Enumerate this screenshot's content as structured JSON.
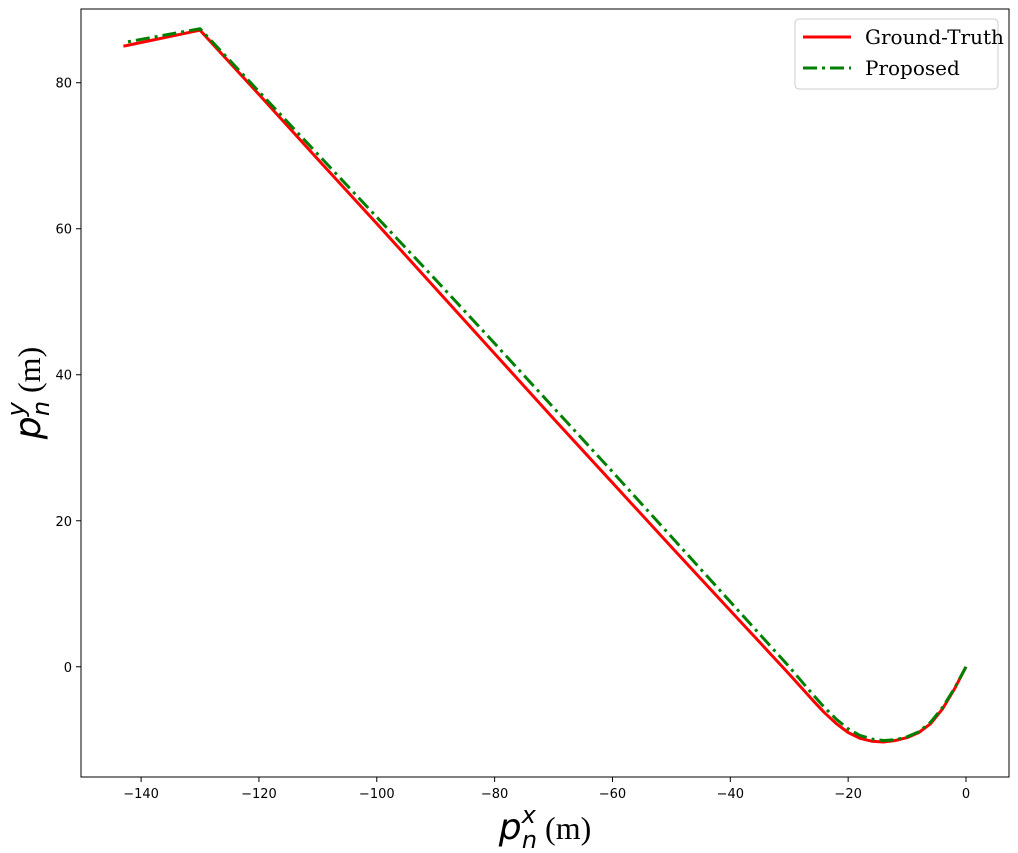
{
  "chart_data": {
    "type": "line",
    "xlabel": {
      "symbol": "p",
      "superscript": "x",
      "subscript": "n",
      "unit": "(m)"
    },
    "ylabel": {
      "symbol": "p",
      "superscript": "y",
      "subscript": "n",
      "unit": "(m)"
    },
    "xlim": [
      -150.2,
      7.3
    ],
    "ylim": [
      -15.1,
      90.1
    ],
    "xticks": [
      -140,
      -120,
      -100,
      -80,
      -60,
      -40,
      -20,
      0
    ],
    "yticks": [
      0,
      20,
      40,
      60,
      80
    ],
    "grid": false,
    "legend_position": "top-right",
    "series": [
      {
        "name": "Ground-Truth",
        "color": "#ff0000",
        "style": "solid",
        "x": [
          0,
          -2,
          -4,
          -6,
          -8,
          -10,
          -12,
          -14,
          -16,
          -18,
          -20,
          -22,
          -24,
          -26,
          -30,
          -40,
          -50,
          -60,
          -70,
          -80,
          -90,
          -100,
          -110,
          -120,
          -130,
          -143
        ],
        "y": [
          0,
          -3.1,
          -5.8,
          -7.8,
          -9.0,
          -9.7,
          -10.1,
          -10.3,
          -10.2,
          -9.8,
          -9.0,
          -7.8,
          -6.3,
          -4.6,
          -1.0,
          7.7,
          16.4,
          25.2,
          34.0,
          42.9,
          51.8,
          60.7,
          69.5,
          78.4,
          87.2,
          85.0
        ]
      },
      {
        "name": "Proposed",
        "color": "#008000",
        "style": "dashdot",
        "x": [
          0,
          -2,
          -4,
          -6,
          -8,
          -10,
          -12,
          -14,
          -16,
          -18,
          -20,
          -22,
          -24,
          -26,
          -30,
          -40,
          -50,
          -60,
          -70,
          -80,
          -90,
          -100,
          -110,
          -120,
          -130,
          -143
        ],
        "y": [
          0,
          -3.0,
          -5.6,
          -7.6,
          -8.9,
          -9.6,
          -10.0,
          -10.1,
          -9.9,
          -9.4,
          -8.5,
          -7.2,
          -5.6,
          -3.8,
          0.0,
          8.9,
          17.8,
          26.7,
          35.5,
          44.3,
          53.0,
          61.6,
          70.2,
          78.8,
          87.4,
          85.5
        ]
      }
    ]
  }
}
